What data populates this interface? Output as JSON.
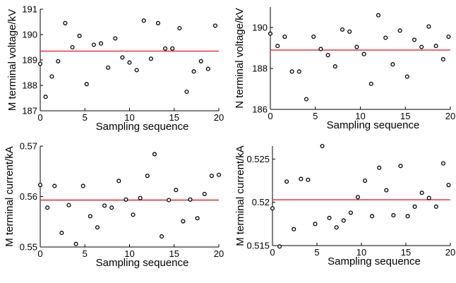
{
  "chart_data": [
    {
      "type": "scatter",
      "xlabel": "Sampling sequence",
      "ylabel": "M terminal voltage/kV",
      "xlim": [
        0,
        20
      ],
      "ylim": [
        187,
        191
      ],
      "xticks": [
        0,
        5,
        10,
        15,
        20
      ],
      "yticks": [
        187,
        188,
        189,
        190,
        191
      ],
      "xtick_labels": [
        "0",
        "5",
        "10",
        "15",
        "20"
      ],
      "ytick_labels": [
        "187",
        "188",
        "189",
        "190",
        "191"
      ],
      "mean_line": {
        "value": 189.35,
        "color": "#e8262a"
      },
      "grid": false,
      "series": [
        {
          "x": [
            0,
            0.6,
            1.3,
            2,
            2.8,
            3.6,
            4.4,
            5.2,
            6,
            6.8,
            7.6,
            8.4,
            9.2,
            10,
            10.8,
            11.6,
            12.4,
            13.2,
            14,
            14.8,
            15.6,
            16.4,
            17.2,
            18,
            18.8,
            19.6
          ],
          "y": [
            188.85,
            187.55,
            188.35,
            188.95,
            190.45,
            189.5,
            189.95,
            188.05,
            189.6,
            189.65,
            188.7,
            189.85,
            189.1,
            188.9,
            188.6,
            190.55,
            189.05,
            190.45,
            189.45,
            189.45,
            190.25,
            187.75,
            188.55,
            188.95,
            188.65,
            190.35
          ]
        }
      ]
    },
    {
      "type": "scatter",
      "xlabel": "Sampling sequence",
      "ylabel": "N terminal voltage/kV",
      "xlim": [
        0,
        20
      ],
      "ylim": [
        186,
        191
      ],
      "xticks": [
        0,
        5,
        10,
        15,
        20
      ],
      "yticks": [
        186,
        188,
        190
      ],
      "xtick_labels": [
        "0",
        "5",
        "10",
        "15",
        "20"
      ],
      "ytick_labels": [
        "186",
        "188",
        "190"
      ],
      "mean_line": {
        "value": 188.9,
        "color": "#e8262a"
      },
      "grid": false,
      "series": [
        {
          "x": [
            0,
            0.8,
            1.6,
            2.4,
            3.2,
            4,
            4.8,
            5.6,
            6.4,
            7.2,
            8,
            8.8,
            9.6,
            10.4,
            11.2,
            12,
            12.8,
            13.6,
            14.4,
            15.2,
            16,
            16.8,
            17.6,
            18.4,
            19.2,
            19.8
          ],
          "y": [
            189.7,
            189.1,
            189.55,
            187.85,
            187.85,
            186.5,
            189.55,
            188.95,
            188.65,
            188.1,
            189.9,
            189.8,
            189.05,
            188.7,
            187.25,
            190.6,
            189.5,
            188.2,
            189.85,
            187.6,
            189.4,
            189.05,
            190.05,
            189.1,
            188.45,
            189.55
          ]
        }
      ]
    },
    {
      "type": "scatter",
      "xlabel": "Sampling sequence",
      "ylabel": "M terminal current/kA",
      "xlim": [
        0,
        20
      ],
      "ylim": [
        0.55,
        0.57
      ],
      "xticks": [
        0,
        5,
        10,
        15,
        20
      ],
      "yticks": [
        0.55,
        0.56,
        0.57
      ],
      "xtick_labels": [
        "0",
        "5",
        "10",
        "15",
        "20"
      ],
      "ytick_labels": [
        "0.55",
        "0.56",
        "0.57"
      ],
      "mean_line": {
        "value": 0.5593,
        "color": "#e8262a"
      },
      "grid": false,
      "series": [
        {
          "x": [
            0,
            0.8,
            1.6,
            2.4,
            3.2,
            4,
            4.8,
            5.6,
            6.4,
            7.2,
            8,
            8.8,
            9.6,
            10.4,
            11.2,
            12,
            12.8,
            13.6,
            14.4,
            15.2,
            16,
            16.8,
            17.6,
            18.4,
            19.2,
            20
          ],
          "y": [
            0.5623,
            0.5578,
            0.5621,
            0.5528,
            0.5583,
            0.5506,
            0.5621,
            0.5561,
            0.5539,
            0.5582,
            0.5578,
            0.5631,
            0.5594,
            0.5564,
            0.5597,
            0.5641,
            0.5684,
            0.5521,
            0.5593,
            0.5613,
            0.5551,
            0.5594,
            0.5557,
            0.5605,
            0.5641,
            0.5643
          ]
        }
      ]
    },
    {
      "type": "scatter",
      "xlabel": "Sampling sequence",
      "ylabel": "M terminal current/kA",
      "xlim": [
        0,
        20
      ],
      "ylim": [
        0.515,
        0.5265
      ],
      "xticks": [
        0,
        5,
        10,
        15,
        20
      ],
      "yticks": [
        0.515,
        0.52,
        0.525
      ],
      "xtick_labels": [
        "0",
        "5",
        "10",
        "15",
        "20"
      ],
      "ytick_labels": [
        "0.515",
        "0.52",
        "0.525"
      ],
      "mean_line": {
        "value": 0.5203,
        "color": "#e8262a"
      },
      "grid": false,
      "series": [
        {
          "x": [
            0,
            0.8,
            1.6,
            2.4,
            3.2,
            4,
            4.8,
            5.6,
            6.4,
            7.2,
            8,
            8.8,
            9.6,
            10.4,
            11.2,
            12,
            12.8,
            13.6,
            14.4,
            15.2,
            16,
            16.8,
            17.6,
            18.4,
            19.2,
            19.8
          ],
          "y": [
            0.5193,
            0.5149,
            0.5224,
            0.5169,
            0.5227,
            0.5226,
            0.5175,
            0.5265,
            0.5182,
            0.5171,
            0.5179,
            0.5188,
            0.5206,
            0.5225,
            0.5184,
            0.524,
            0.5214,
            0.5185,
            0.5242,
            0.5184,
            0.5195,
            0.5211,
            0.5205,
            0.5195,
            0.5245,
            0.522
          ]
        }
      ]
    }
  ]
}
